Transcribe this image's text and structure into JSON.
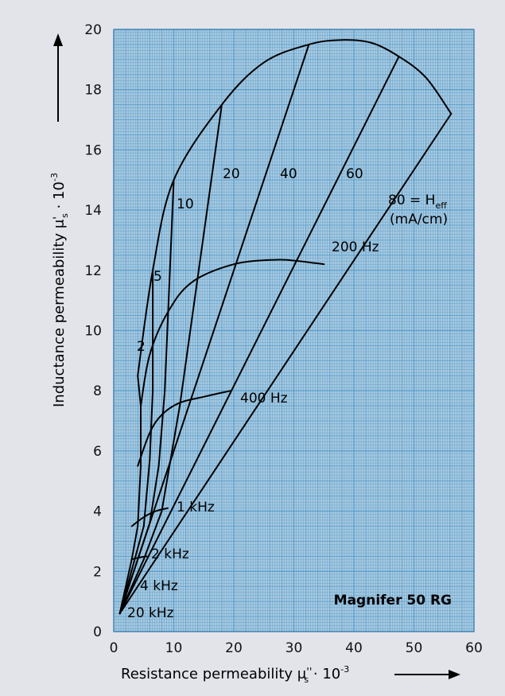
{
  "chart_data": {
    "type": "line",
    "title": "Magnifer 50 RG",
    "xlabel": "Resistance permeability μ''s · 10-3",
    "ylabel": "Inductance permeability μ's · 10-3",
    "xlabel_parts": {
      "main": "Resistance permeability μ",
      "prime": "''",
      "sub": "s",
      "rest": " · 10",
      "exp": "-3"
    },
    "ylabel_parts": {
      "main": "Inductance permeability μ",
      "prime": "'",
      "sub": "s",
      "rest": " · 10",
      "exp": "-3"
    },
    "xlim": [
      0,
      60
    ],
    "ylim": [
      0,
      20
    ],
    "xticks": [
      "0",
      "10",
      "20",
      "30",
      "40",
      "50",
      "60"
    ],
    "yticks": [
      "0",
      "2",
      "4",
      "6",
      "8",
      "10",
      "12",
      "14",
      "16",
      "18",
      "20"
    ],
    "grid": true,
    "colors": {
      "background": "#e3e4ea",
      "plot": "#aac9de",
      "grid": "#5aa0cf",
      "line": "#000000"
    },
    "field_unit_label": "(mA/cm)",
    "heff_label": {
      "prefix": "80 = H",
      "sub": "eff"
    },
    "field_strength_series": [
      {
        "name": "2",
        "points": [
          [
            1,
            0.6
          ],
          [
            3,
            2.4
          ],
          [
            4,
            3.5
          ],
          [
            4.5,
            5.5
          ],
          [
            4.5,
            7.5
          ],
          [
            4,
            8.5
          ]
        ]
      },
      {
        "name": "5",
        "points": [
          [
            1,
            0.6
          ],
          [
            3.5,
            2.4
          ],
          [
            5,
            3.5
          ],
          [
            6,
            5.7
          ],
          [
            6.5,
            8
          ],
          [
            6.5,
            12
          ]
        ]
      },
      {
        "name": "10",
        "points": [
          [
            1,
            0.6
          ],
          [
            4,
            2.4
          ],
          [
            6,
            3.6
          ],
          [
            7.5,
            5.5
          ],
          [
            8.5,
            8
          ],
          [
            10,
            15
          ]
        ]
      },
      {
        "name": "20",
        "points": [
          [
            1,
            0.6
          ],
          [
            5,
            2.4
          ],
          [
            8,
            4
          ],
          [
            11,
            7.5
          ],
          [
            18,
            17.5
          ]
        ]
      },
      {
        "name": "40",
        "points": [
          [
            1,
            0.6
          ],
          [
            32.5,
            19.5
          ]
        ]
      },
      {
        "name": "60",
        "points": [
          [
            1,
            0.6
          ],
          [
            47.5,
            19.1
          ]
        ]
      },
      {
        "name": "80",
        "points": [
          [
            1,
            0.6
          ],
          [
            56.2,
            17.2
          ]
        ]
      }
    ],
    "frequency_series": [
      {
        "name": "20 kHz",
        "points": [
          [
            1,
            0.6
          ]
        ]
      },
      {
        "name": "4 kHz",
        "points": [
          [
            2,
            1.4
          ]
        ]
      },
      {
        "name": "2 kHz",
        "points": [
          [
            3,
            2.4
          ],
          [
            4,
            2.45
          ],
          [
            5.5,
            2.5
          ]
        ]
      },
      {
        "name": "1 kHz",
        "points": [
          [
            3,
            3.5
          ],
          [
            5,
            3.8
          ],
          [
            7,
            4.0
          ],
          [
            9,
            4.1
          ]
        ]
      },
      {
        "name": "400 Hz",
        "points": [
          [
            4,
            5.5
          ],
          [
            6,
            6.6
          ],
          [
            8,
            7.2
          ],
          [
            11,
            7.6
          ],
          [
            15,
            7.8
          ],
          [
            19.5,
            8
          ]
        ]
      },
      {
        "name": "200 Hz",
        "points": [
          [
            4.5,
            7.5
          ],
          [
            6,
            9.2
          ],
          [
            9,
            10.6
          ],
          [
            13,
            11.6
          ],
          [
            20,
            12.2
          ],
          [
            27,
            12.35
          ],
          [
            31,
            12.3
          ],
          [
            35,
            12.2
          ]
        ]
      }
    ],
    "envelope": {
      "name": "envelope",
      "points": [
        [
          4,
          8.5
        ],
        [
          6.5,
          12
        ],
        [
          10,
          15
        ],
        [
          18,
          17.5
        ],
        [
          25,
          18.9
        ],
        [
          32.5,
          19.5
        ],
        [
          38,
          19.65
        ],
        [
          43,
          19.55
        ],
        [
          47.5,
          19.1
        ],
        [
          52,
          18.4
        ],
        [
          56.2,
          17.2
        ]
      ]
    },
    "annotations": [
      "2",
      "5",
      "10",
      "20",
      "40",
      "60",
      "200 Hz",
      "400 Hz",
      "1 kHz",
      "2 kHz",
      "4 kHz",
      "20 kHz"
    ]
  }
}
